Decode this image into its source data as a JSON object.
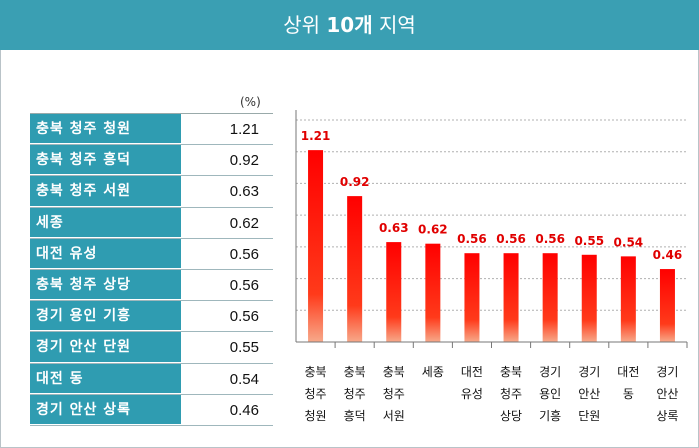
{
  "header": {
    "title_prefix": "상위 ",
    "title_bold": "10개",
    "title_suffix": " 지역"
  },
  "table": {
    "unit": "(%)",
    "rows": [
      {
        "label": "충북 청주 청원",
        "value": "1.21"
      },
      {
        "label": "충북 청주 흥덕",
        "value": "0.92"
      },
      {
        "label": "충북 청주 서원",
        "value": "0.63"
      },
      {
        "label": "세종",
        "value": "0.62"
      },
      {
        "label": "대전 유성",
        "value": "0.56"
      },
      {
        "label": "충북 청주 상당",
        "value": "0.56"
      },
      {
        "label": "경기 용인 기흥",
        "value": "0.56"
      },
      {
        "label": "경기 안산 단원",
        "value": "0.55"
      },
      {
        "label": "대전 동",
        "value": "0.54"
      },
      {
        "label": "경기 안산 상록",
        "value": "0.46"
      }
    ]
  },
  "chart_data": {
    "type": "bar",
    "categories": [
      [
        "충북",
        "청주",
        "청원"
      ],
      [
        "충북",
        "청주",
        "흥덕"
      ],
      [
        "충북",
        "청주",
        "서원"
      ],
      [
        "세종"
      ],
      [
        "대전",
        "유성"
      ],
      [
        "충북",
        "청주",
        "상당"
      ],
      [
        "경기",
        "용인",
        "기흥"
      ],
      [
        "경기",
        "안산",
        "단원"
      ],
      [
        "대전",
        "동"
      ],
      [
        "경기",
        "안산",
        "상록"
      ]
    ],
    "values": [
      1.21,
      0.92,
      0.63,
      0.62,
      0.56,
      0.56,
      0.56,
      0.55,
      0.54,
      0.46
    ],
    "data_labels": [
      "1.21",
      "0.92",
      "0.63",
      "0.62",
      "0.56",
      "0.56",
      "0.56",
      "0.55",
      "0.54",
      "0.46"
    ],
    "ylim": [
      0,
      1.4
    ],
    "grid": true,
    "bar_color_top": "#ff0000",
    "bar_color_bottom": "#f7a98a",
    "label_color": "#e00000"
  }
}
